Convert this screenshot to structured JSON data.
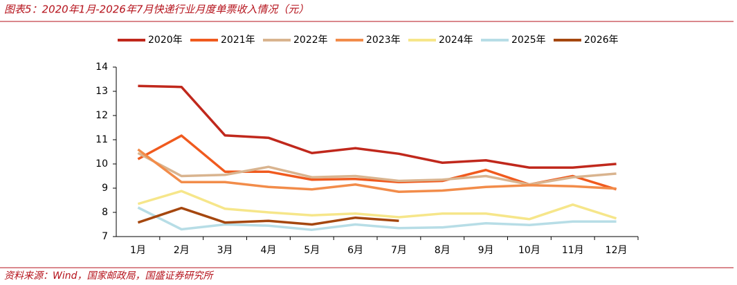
{
  "chart_data": {
    "type": "line",
    "title": "图表5：2020年1月-2026年7月快递行业月度单票收入情况（元）",
    "source": "资料来源：Wind，国家邮政局，国盛证券研究所",
    "categories": [
      "1月",
      "2月",
      "3月",
      "4月",
      "5月",
      "6月",
      "7月",
      "8月",
      "9月",
      "10月",
      "11月",
      "12月"
    ],
    "ylim": [
      7,
      14
    ],
    "yticks": [
      7,
      8,
      9,
      10,
      11,
      12,
      13,
      14
    ],
    "legend": "top",
    "series": [
      {
        "name": "2020年",
        "color": "#c0281c",
        "values": [
          13.22,
          13.18,
          11.18,
          11.08,
          10.45,
          10.65,
          10.42,
          10.05,
          10.15,
          9.85,
          9.85,
          10.0
        ]
      },
      {
        "name": "2021年",
        "color": "#f05a1e",
        "values": [
          10.2,
          11.17,
          9.68,
          9.68,
          9.35,
          9.38,
          9.25,
          9.3,
          9.75,
          9.15,
          9.5,
          8.95
        ]
      },
      {
        "name": "2022年",
        "color": "#d9b48f",
        "values": [
          10.45,
          9.5,
          9.55,
          9.88,
          9.45,
          9.5,
          9.3,
          9.35,
          9.5,
          9.15,
          9.45,
          9.6
        ]
      },
      {
        "name": "2023年",
        "color": "#f28c4a",
        "values": [
          10.6,
          9.25,
          9.25,
          9.05,
          8.95,
          9.15,
          8.85,
          8.9,
          9.05,
          9.12,
          9.08,
          8.98
        ]
      },
      {
        "name": "2024年",
        "color": "#f6e68a",
        "values": [
          8.35,
          8.88,
          8.15,
          8.0,
          7.88,
          7.95,
          7.8,
          7.95,
          7.95,
          7.72,
          8.32,
          7.75
        ]
      },
      {
        "name": "2025年",
        "color": "#b7dde6",
        "values": [
          8.2,
          7.3,
          7.5,
          7.45,
          7.28,
          7.5,
          7.35,
          7.38,
          7.55,
          7.48,
          7.62,
          7.62
        ]
      },
      {
        "name": "2026年",
        "color": "#a5470f",
        "values": [
          7.58,
          8.18,
          7.58,
          7.65,
          7.5,
          7.78,
          7.65,
          null,
          null,
          null,
          null,
          null
        ]
      }
    ]
  }
}
